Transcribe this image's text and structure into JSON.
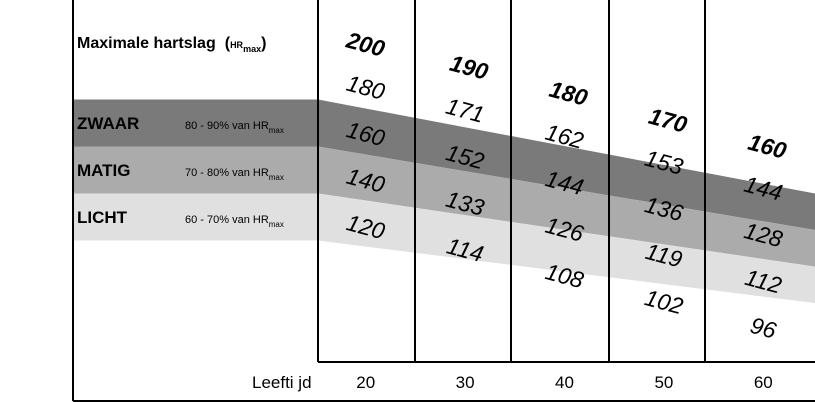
{
  "chart_data": {
    "type": "area",
    "title": "Maximale hartslag",
    "title_unit_base": "HR",
    "title_unit_sub": "max",
    "xlabel": "Leefti jd",
    "categories": [
      "20",
      "30",
      "40",
      "50",
      "60"
    ],
    "max_hr": [
      200,
      190,
      180,
      170,
      160
    ],
    "zones": [
      {
        "name": "ZWAAR",
        "range_text": "80 - 90% van HR",
        "range_sub": "max",
        "color": "#7a7a7a",
        "upper": [
          180,
          171,
          162,
          153,
          144
        ],
        "lower": [
          160,
          152,
          144,
          136,
          128
        ]
      },
      {
        "name": "MATIG",
        "range_text": "70 - 80% van HR",
        "range_sub": "max",
        "color": "#ababab",
        "upper": [
          160,
          152,
          144,
          136,
          128
        ],
        "lower": [
          140,
          133,
          126,
          119,
          112
        ]
      },
      {
        "name": "LICHT",
        "range_text": "60 - 70% van HR",
        "range_sub": "max",
        "color": "#e0e0e0",
        "upper": [
          140,
          133,
          126,
          119,
          112
        ],
        "lower": [
          120,
          114,
          108,
          102,
          96
        ]
      }
    ]
  }
}
